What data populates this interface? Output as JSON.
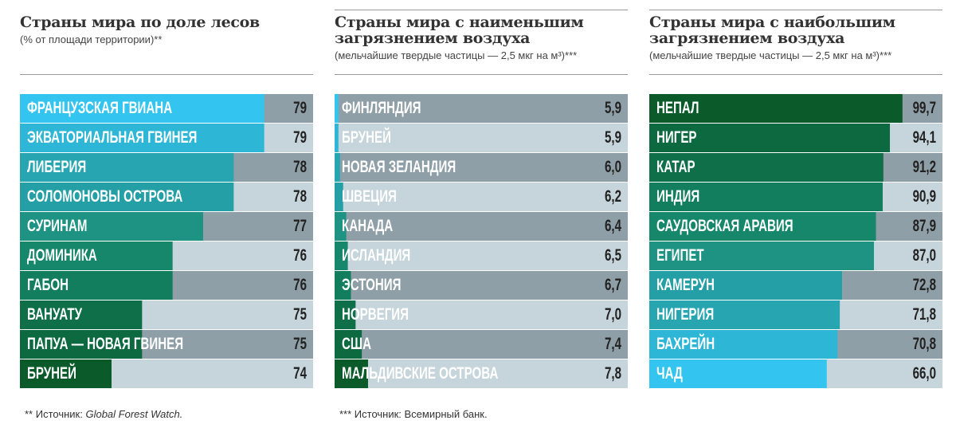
{
  "chart_data": [
    {
      "type": "bar",
      "title": "Страны мира по доле лесов",
      "subtitle": "(% от площади территории)**",
      "categories": [
        "ФРАНЦУЗСКАЯ ГВИАНА",
        "ЭКВАТОРИАЛЬНАЯ ГВИНЕЯ",
        "ЛИБЕРИЯ",
        "СОЛОМОНОВЫ ОСТРОВА",
        "СУРИНАМ",
        "ДОМИНИКА",
        "ГАБОН",
        "ВАНУАТУ",
        "ПАПУА — НОВАЯ ГВИНЕЯ",
        "БРУНЕЙ"
      ],
      "values": [
        79,
        79,
        78,
        78,
        77,
        76,
        76,
        75,
        75,
        74
      ],
      "colors": [
        "#33c4ef",
        "#2eb6d6",
        "#27a6b2",
        "#249fa6",
        "#1e9383",
        "#16876a",
        "#127e5e",
        "#0f6f48",
        "#0d6940",
        "#0a5a2a"
      ],
      "xlim": [
        71,
        80.6
      ],
      "footnote_prefix": "** Источник:",
      "footnote_source": "Global Forest Watch."
    },
    {
      "type": "bar",
      "title": "Страны мира с наименьшим загрязнением воздуха",
      "subtitle": "(мельчайшие твердые частицы — 2,5 мкг на м³)***",
      "categories": [
        "ФИНЛЯНДИЯ",
        "БРУНЕЙ",
        "НОВАЯ ЗЕЛАНДИЯ",
        "ШВЕЦИЯ",
        "КАНАДА",
        "ИСЛАНДИЯ",
        "ЭСТОНИЯ",
        "НОРВЕГИЯ",
        "США",
        "МАЛЬДИВСКИЕ ОСТРОВА"
      ],
      "values": [
        5.9,
        5.9,
        6.0,
        6.2,
        6.4,
        6.5,
        6.7,
        7.0,
        7.4,
        7.8
      ],
      "value_labels": [
        "5,9",
        "5,9",
        "6,0",
        "6,2",
        "6,4",
        "6,5",
        "6,7",
        "7,0",
        "7,4",
        "7,8"
      ],
      "colors": [
        "#33c4ef",
        "#2eb6d6",
        "#27a6b2",
        "#249fa6",
        "#1e9383",
        "#16876a",
        "#127e5e",
        "#0f6f48",
        "#0d6940",
        "#0a5a2a"
      ],
      "xlim": [
        5.65,
        24.5
      ],
      "footnote_prefix": "*** Источник: Всемирный банк."
    },
    {
      "type": "bar",
      "title": "Страны мира с наибольшим загрязнением воздуха",
      "subtitle": "(мельчайшие твердые частицы — 2,5 мкг на м³)***",
      "categories": [
        "НЕПАЛ",
        "НИГЕР",
        "КАТАР",
        "ИНДИЯ",
        "САУДОВСКАЯ АРАВИЯ",
        "ЕГИПЕТ",
        "КАМЕРУН",
        "НИГЕРИЯ",
        "БАХРЕЙН",
        "ЧАД"
      ],
      "values": [
        99.7,
        94.1,
        91.2,
        90.9,
        87.9,
        87.0,
        72.8,
        71.8,
        70.8,
        66.0
      ],
      "value_labels": [
        "99,7",
        "94,1",
        "91,2",
        "90,9",
        "87,9",
        "87,0",
        "72,8",
        "71,8",
        "70,8",
        "66,0"
      ],
      "colors": [
        "#0a5a2a",
        "#0d6940",
        "#0f6f48",
        "#127e5e",
        "#16876a",
        "#1e9383",
        "#249fa6",
        "#27a6b2",
        "#2eb6d6",
        "#33c4ef"
      ],
      "xlim": [
        -13,
        117.5
      ]
    }
  ]
}
